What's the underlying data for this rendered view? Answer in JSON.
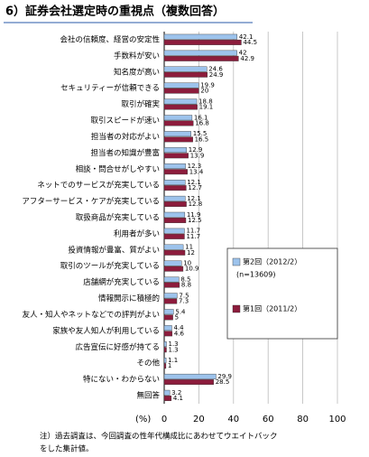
{
  "chart_data": {
    "type": "barh",
    "title": "6）証券会社選定時の重視点（複数回答）",
    "categories": [
      "会社の信頼度、経営の安定性",
      "手数料が安い",
      "知名度が高い",
      "セキュリティーが信頼できる",
      "取引が確実",
      "取引スピードが速い",
      "担当者の対応がよい",
      "担当者の知識が豊富",
      "相談・問合せがしやすい",
      "ネットでのサービスが充実している",
      "アフターサービス・ケアが充実している",
      "取扱商品が充実している",
      "利用者が多い",
      "投資情報が豊富、質がよい",
      "取引のツールが充実している",
      "店舗網が充実している",
      "情報開示に積極的",
      "友人・知人やネットなどでの評判がよい",
      "家族や友人知人が利用している",
      "広告宣伝に好感が持てる",
      "その他",
      "特にない・わからない",
      "無回答"
    ],
    "series": [
      {
        "name": "第2回（2012/2）",
        "color": "#9dc3ec",
        "values": [
          42.1,
          42.0,
          24.6,
          19.9,
          18.8,
          16.1,
          15.5,
          12.9,
          12.3,
          12.1,
          12.1,
          11.9,
          11.7,
          11.0,
          10.0,
          8.5,
          7.5,
          5.4,
          4.4,
          1.3,
          1.1,
          29.9,
          3.2
        ]
      },
      {
        "name": "第1回（2011/2）",
        "color": "#8c1c3c",
        "values": [
          44.5,
          42.9,
          24.9,
          20.0,
          19.1,
          16.8,
          16.5,
          13.9,
          13.4,
          12.7,
          12.8,
          12.5,
          11.7,
          12.0,
          10.9,
          8.8,
          7.3,
          5.0,
          4.6,
          1.3,
          1.0,
          28.5,
          4.1
        ]
      }
    ],
    "legend_note": "(n=13609)",
    "xlabel": "(%)",
    "xlim": [
      0,
      100
    ],
    "xticks": [
      0,
      20,
      40,
      60,
      80,
      100
    ],
    "grid": true,
    "note": [
      "注）過去調査は、今回調査の性年代構成比にあわせてウエイトバック",
      "をした集計値。"
    ]
  }
}
